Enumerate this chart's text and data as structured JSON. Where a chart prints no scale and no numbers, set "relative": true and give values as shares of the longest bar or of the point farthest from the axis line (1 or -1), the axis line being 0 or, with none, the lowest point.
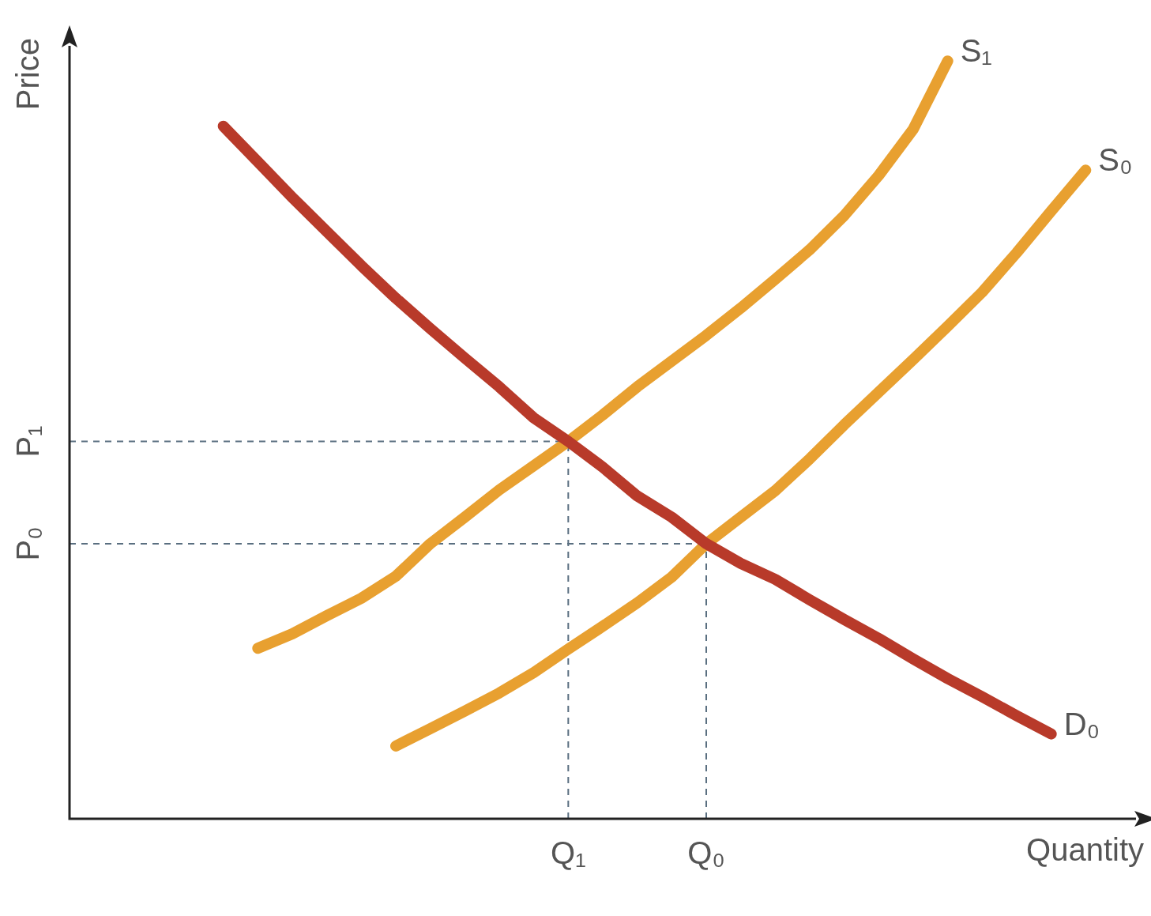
{
  "chart_data": {
    "type": "line",
    "relative": true,
    "xlabel": "Quantity",
    "ylabel": "Price",
    "legend": false,
    "marker": "none",
    "line_style": "solid",
    "categories": [
      null,
      null,
      null,
      null,
      null,
      null,
      null,
      null,
      null,
      null,
      null,
      null,
      null,
      null,
      "Q₁",
      null,
      null,
      null,
      "Q₀",
      null,
      null,
      null,
      null,
      null,
      null,
      null,
      null,
      null,
      null,
      null,
      null
    ],
    "series": [
      {
        "name": "D₀",
        "color": "#b83a2a",
        "values": [
          null,
          null,
          null,
          null,
          0.914,
          0.867,
          0.82,
          0.775,
          0.73,
          0.687,
          0.647,
          0.608,
          0.57,
          0.529,
          0.498,
          0.464,
          0.426,
          0.398,
          0.363,
          0.337,
          0.316,
          0.289,
          0.263,
          0.238,
          0.211,
          0.185,
          0.161,
          0.136,
          0.112,
          null,
          null
        ]
      },
      {
        "name": "S₁",
        "color": "#e8a030",
        "values": [
          null,
          null,
          null,
          null,
          null,
          0.225,
          0.244,
          0.268,
          0.291,
          0.32,
          0.363,
          0.398,
          0.434,
          0.466,
          0.498,
          0.533,
          0.57,
          0.604,
          0.638,
          0.674,
          0.712,
          0.751,
          0.796,
          0.849,
          0.91,
          1.0,
          null,
          null,
          null,
          null,
          null
        ]
      },
      {
        "name": "S₀",
        "color": "#e8a030",
        "values": [
          null,
          null,
          null,
          null,
          null,
          null,
          null,
          null,
          null,
          0.096,
          0.119,
          0.142,
          0.166,
          0.193,
          0.224,
          0.254,
          0.285,
          0.319,
          0.363,
          0.398,
          0.433,
          0.475,
          0.52,
          0.563,
          0.606,
          0.65,
          0.695,
          0.747,
          0.802,
          0.856,
          null
        ]
      }
    ],
    "ref_lines": [
      {
        "axis": "y",
        "value": 0.498,
        "label": "P₁",
        "color": "#5a6f80",
        "line_style": "dashed"
      },
      {
        "axis": "y",
        "value": 0.363,
        "label": "P₀",
        "color": "#5a6f80",
        "line_style": "dashed"
      },
      {
        "axis": "x",
        "value": "Q₁",
        "color": "#5a6f80",
        "line_style": "dashed"
      },
      {
        "axis": "x",
        "value": "Q₀",
        "color": "#5a6f80",
        "line_style": "dashed"
      }
    ]
  }
}
